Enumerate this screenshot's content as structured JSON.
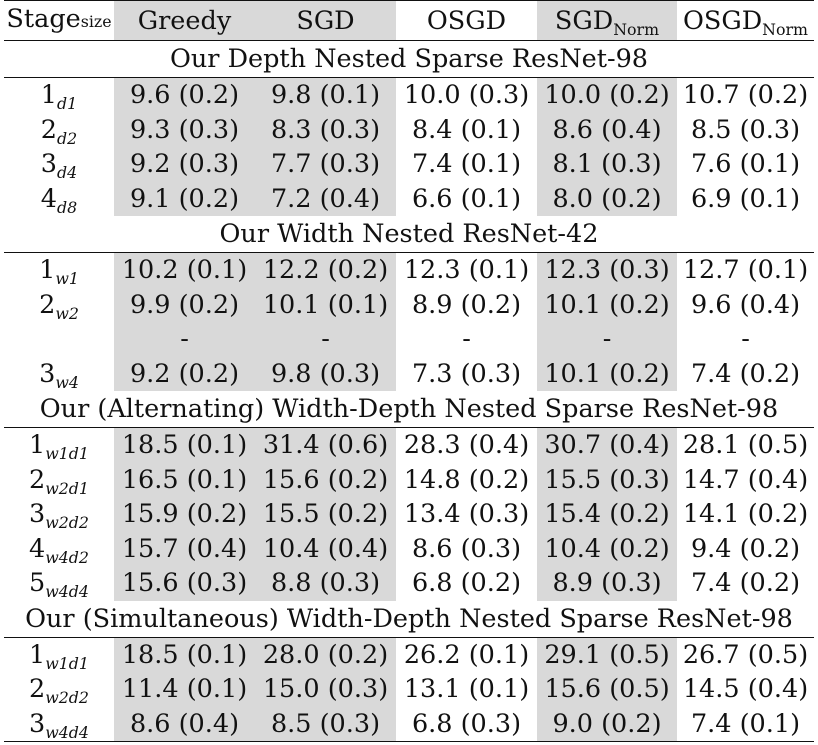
{
  "header": {
    "stage": "Stage",
    "stage_sub": "size",
    "greedy": "Greedy",
    "sgd": "SGD",
    "osgd": "OSGD",
    "sgd_norm": "SGD",
    "sgd_norm_sub": "Norm",
    "osgd_norm": "OSGD",
    "osgd_norm_sub": "Norm"
  },
  "sections": [
    {
      "title": "Our Depth Nested Sparse ResNet-98",
      "rows": [
        {
          "n": "1",
          "sub": "d1",
          "v": [
            "9.6 (0.2)",
            "9.8 (0.1)",
            "10.0 (0.3)",
            "10.0 (0.2)",
            "10.7 (0.2)"
          ]
        },
        {
          "n": "2",
          "sub": "d2",
          "v": [
            "9.3 (0.3)",
            "8.3 (0.3)",
            "8.4 (0.1)",
            "8.6 (0.4)",
            "8.5 (0.3)"
          ]
        },
        {
          "n": "3",
          "sub": "d4",
          "v": [
            "9.2 (0.3)",
            "7.7 (0.3)",
            "7.4 (0.1)",
            "8.1 (0.3)",
            "7.6 (0.1)"
          ]
        },
        {
          "n": "4",
          "sub": "d8",
          "v": [
            "9.1 (0.2)",
            "7.2 (0.4)",
            "6.6 (0.1)",
            "8.0 (0.2)",
            "6.9 (0.1)"
          ]
        }
      ]
    },
    {
      "title": "Our Width Nested ResNet-42",
      "rows": [
        {
          "n": "1",
          "sub": "w1",
          "v": [
            "10.2 (0.1)",
            "12.2 (0.2)",
            "12.3 (0.1)",
            "12.3 (0.3)",
            "12.7 (0.1)"
          ]
        },
        {
          "n": "2",
          "sub": "w2",
          "v": [
            "9.9 (0.2)",
            "10.1 (0.1)",
            "8.9 (0.2)",
            "10.1 (0.2)",
            "9.6 (0.4)"
          ]
        },
        {
          "n": "",
          "sub": "",
          "v": [
            "-",
            "-",
            "-",
            "-",
            "-"
          ]
        },
        {
          "n": "3",
          "sub": "w4",
          "v": [
            "9.2 (0.2)",
            "9.8 (0.3)",
            "7.3 (0.3)",
            "10.1 (0.2)",
            "7.4 (0.2)"
          ]
        }
      ]
    },
    {
      "title": "Our (Alternating) Width-Depth Nested Sparse ResNet-98",
      "rows": [
        {
          "n": "1",
          "sub": "w1d1",
          "v": [
            "18.5 (0.1)",
            "31.4 (0.6)",
            "28.3 (0.4)",
            "30.7 (0.4)",
            "28.1 (0.5)"
          ]
        },
        {
          "n": "2",
          "sub": "w2d1",
          "v": [
            "16.5 (0.1)",
            "15.6 (0.2)",
            "14.8 (0.2)",
            "15.5 (0.3)",
            "14.7 (0.4)"
          ]
        },
        {
          "n": "3",
          "sub": "w2d2",
          "v": [
            "15.9 (0.2)",
            "15.5 (0.2)",
            "13.4 (0.3)",
            "15.4 (0.2)",
            "14.1 (0.2)"
          ]
        },
        {
          "n": "4",
          "sub": "w4d2",
          "v": [
            "15.7 (0.4)",
            "10.4 (0.4)",
            "8.6 (0.3)",
            "10.4 (0.2)",
            "9.4 (0.2)"
          ]
        },
        {
          "n": "5",
          "sub": "w4d4",
          "v": [
            "15.6 (0.3)",
            "8.8 (0.3)",
            "6.8 (0.2)",
            "8.9 (0.3)",
            "7.4 (0.2)"
          ]
        }
      ]
    },
    {
      "title": "Our (Simultaneous) Width-Depth Nested Sparse ResNet-98",
      "rows": [
        {
          "n": "1",
          "sub": "w1d1",
          "v": [
            "18.5 (0.1)",
            "28.0 (0.2)",
            "26.2 (0.1)",
            "29.1 (0.5)",
            "26.7 (0.5)"
          ]
        },
        {
          "n": "2",
          "sub": "w2d2",
          "v": [
            "11.4 (0.1)",
            "15.0 (0.3)",
            "13.1 (0.1)",
            "15.6 (0.5)",
            "14.5 (0.4)"
          ]
        },
        {
          "n": "3",
          "sub": "w4d4",
          "v": [
            "8.6 (0.4)",
            "8.5 (0.3)",
            "6.8 (0.3)",
            "9.0 (0.2)",
            "7.4 (0.1)"
          ]
        }
      ]
    }
  ]
}
